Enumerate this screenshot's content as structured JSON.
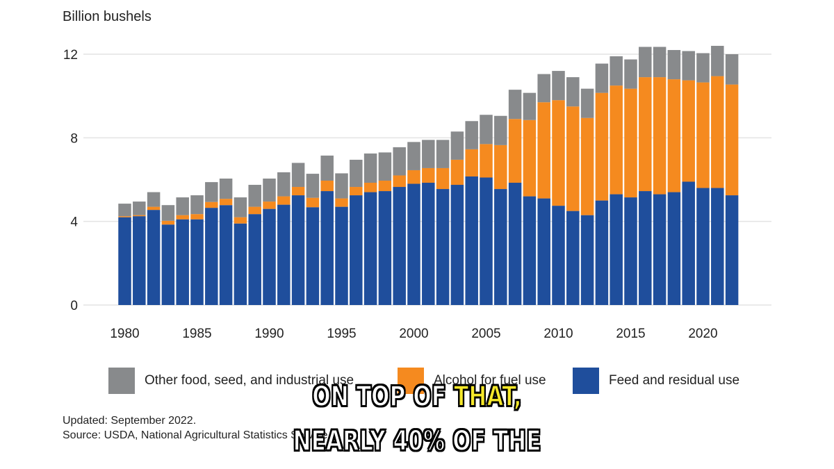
{
  "chart_data": {
    "type": "bar",
    "stacked": true,
    "ylabel": "Billion bushels",
    "ylim": [
      0,
      12.5
    ],
    "yticks": [
      0,
      4,
      8,
      12
    ],
    "xticks": [
      "1980",
      "1985",
      "1990",
      "1995",
      "2000",
      "2005",
      "2010",
      "2015",
      "2020"
    ],
    "grid": true,
    "legend_position": "bottom",
    "categories": [
      1980,
      1981,
      1982,
      1983,
      1984,
      1985,
      1986,
      1987,
      1988,
      1989,
      1990,
      1991,
      1992,
      1993,
      1994,
      1995,
      1996,
      1997,
      1998,
      1999,
      2000,
      2001,
      2002,
      2003,
      2004,
      2005,
      2006,
      2007,
      2008,
      2009,
      2010,
      2011,
      2012,
      2013,
      2014,
      2015,
      2016,
      2017,
      2018,
      2019,
      2020,
      2021,
      2022
    ],
    "series": [
      {
        "name": "Feed and residual use",
        "color": "#1f4e9c",
        "values": [
          4.2,
          4.25,
          4.55,
          3.85,
          4.1,
          4.1,
          4.65,
          4.78,
          3.9,
          4.35,
          4.6,
          4.8,
          5.25,
          4.68,
          5.45,
          4.7,
          5.25,
          5.4,
          5.45,
          5.65,
          5.8,
          5.85,
          5.55,
          5.75,
          6.15,
          6.1,
          5.55,
          5.85,
          5.2,
          5.1,
          4.75,
          4.5,
          4.3,
          5.0,
          5.3,
          5.15,
          5.45,
          5.3,
          5.4,
          5.9,
          5.6,
          5.6,
          5.25
        ]
      },
      {
        "name": "Alcohol for fuel use",
        "color": "#f58a1f",
        "values": [
          0.05,
          0.05,
          0.15,
          0.18,
          0.2,
          0.25,
          0.28,
          0.3,
          0.3,
          0.35,
          0.35,
          0.4,
          0.4,
          0.45,
          0.5,
          0.4,
          0.4,
          0.45,
          0.5,
          0.55,
          0.65,
          0.7,
          1.0,
          1.2,
          1.3,
          1.6,
          2.1,
          3.05,
          3.65,
          4.6,
          5.05,
          5.0,
          4.65,
          5.15,
          5.2,
          5.2,
          5.45,
          5.6,
          5.4,
          4.85,
          5.05,
          5.35,
          5.3
        ]
      },
      {
        "name": "Other food, seed, and industrial use",
        "color": "#888a8c",
        "values": [
          0.6,
          0.65,
          0.7,
          0.75,
          0.85,
          0.9,
          0.95,
          0.97,
          0.95,
          1.05,
          1.1,
          1.15,
          1.15,
          1.15,
          1.2,
          1.2,
          1.3,
          1.4,
          1.35,
          1.35,
          1.35,
          1.35,
          1.35,
          1.35,
          1.35,
          1.4,
          1.4,
          1.4,
          1.3,
          1.35,
          1.4,
          1.4,
          1.4,
          1.4,
          1.4,
          1.4,
          1.45,
          1.45,
          1.4,
          1.4,
          1.4,
          1.45,
          1.45
        ]
      }
    ],
    "legend_order": [
      "Other food, seed, and industrial use",
      "Alcohol for fuel use",
      "Feed and residual use"
    ]
  },
  "notes": {
    "updated": "Updated: September 2022.",
    "source": "Source: USDA, National Agricultural Statistics Service."
  },
  "captions": {
    "line1_prefix": "ON TOP OF ",
    "line1_highlight": "THAT,",
    "line2": "NEARLY 40% OF THE"
  },
  "colors": {
    "grid": "#e3e3e3",
    "caption_highlight": "#f5e82a"
  }
}
